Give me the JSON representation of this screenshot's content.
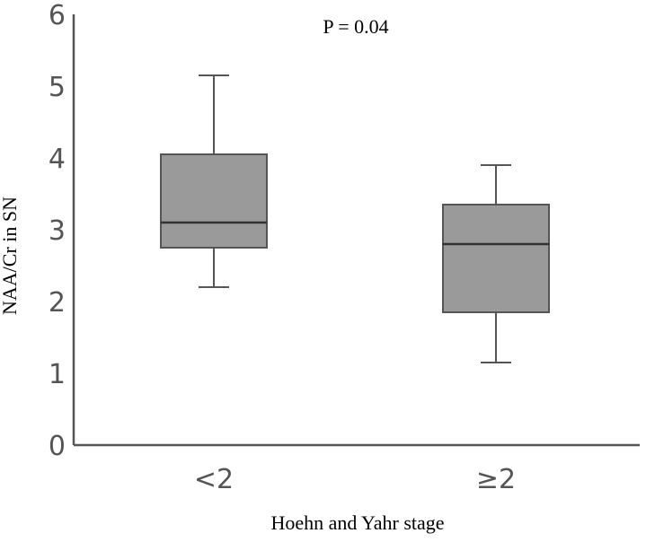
{
  "chart_data": {
    "type": "box",
    "categories": [
      "<2",
      "≥2"
    ],
    "boxes": [
      {
        "category": "<2",
        "min": 2.2,
        "q1": 2.75,
        "median": 3.1,
        "q3": 4.05,
        "max": 5.15
      },
      {
        "category": "≥2",
        "min": 1.15,
        "q1": 1.85,
        "median": 2.8,
        "q3": 3.35,
        "max": 3.9
      }
    ],
    "xlabel": "Hoehn and Yahr stage",
    "ylabel": "NAA/Cr in SN",
    "ylim": [
      0,
      6
    ],
    "yticks": [
      "0",
      "1",
      "2",
      "3",
      "4",
      "5",
      "6"
    ],
    "annotation": "P = 0.04",
    "grid": false,
    "box_fill": "#9a9a9a",
    "line_color": "#555555"
  }
}
